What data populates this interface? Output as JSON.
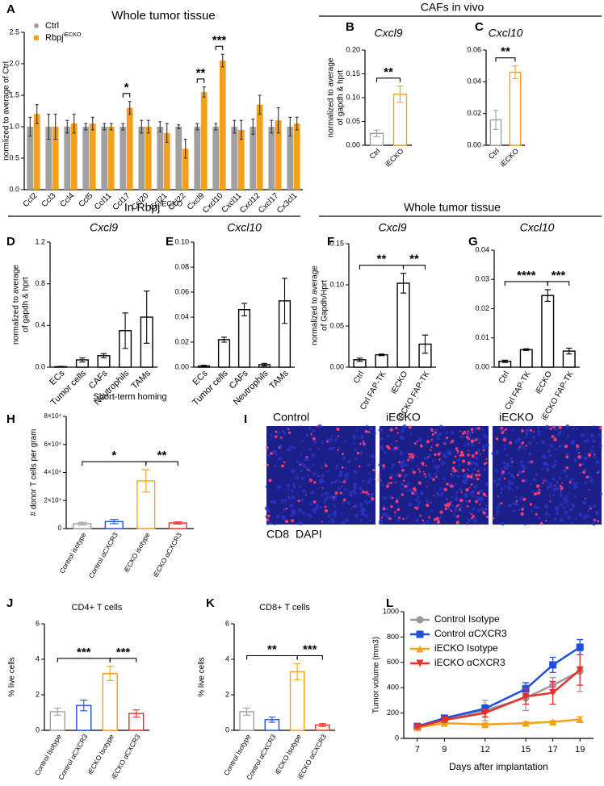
{
  "section_headers": [
    {
      "text": "CAFs in vivo"
    },
    {
      "text": "In Rbpj",
      "sup": "iECKO"
    },
    {
      "text": "Whole tumor tissue"
    }
  ],
  "image_panel": {
    "panel": "I",
    "tiles": [
      "Control",
      "iECKO",
      "iECKO"
    ],
    "channels": [
      {
        "name": "CD8",
        "color": "#e8252e"
      },
      {
        "name": "DAPI",
        "color": "#2f6fcf"
      }
    ]
  },
  "chart_data": [
    {
      "type": "bar",
      "panel": "A",
      "title": "Whole tumor tissue",
      "ylabel": "normlized to average of Ctrl",
      "bar_style": "filled",
      "categories": [
        "Ccl2",
        "Ccl3",
        "Ccl4",
        "Ccl5",
        "Ccl11",
        "Ccl17",
        "Ccl20",
        "Ccl21",
        "Ccl22",
        "Cxcl9",
        "Cxcl10",
        "Cxcl11",
        "Cxcl12",
        "Cxcl17",
        "Cx3cl1"
      ],
      "series": [
        {
          "name": "Ctrl",
          "color": "#a0a0a0",
          "marker": "circle",
          "values": [
            1.0,
            1.0,
            1.0,
            1.0,
            1.0,
            1.0,
            1.0,
            1.0,
            1.0,
            1.0,
            1.0,
            1.0,
            1.0,
            1.0,
            1.0
          ],
          "errors": [
            0.15,
            0.2,
            0.1,
            0.05,
            0.05,
            0.05,
            0.1,
            0.08,
            0.03,
            0.05,
            0.05,
            0.1,
            0.12,
            0.1,
            0.15
          ]
        },
        {
          "name": "Rbpj",
          "name_sup": "iECKO",
          "color": "#f5a01a",
          "marker": "square",
          "values": [
            1.2,
            1.0,
            1.05,
            1.05,
            1.0,
            1.3,
            1.0,
            0.9,
            0.65,
            1.55,
            2.05,
            0.95,
            1.35,
            1.1,
            1.05
          ],
          "errors": [
            0.15,
            0.2,
            0.15,
            0.1,
            0.05,
            0.1,
            0.1,
            0.15,
            0.15,
            0.08,
            0.1,
            0.15,
            0.15,
            0.2,
            0.1
          ]
        }
      ],
      "ylim": [
        0,
        2.5
      ],
      "yticks": [
        {
          "value": 0,
          "label": "0.0"
        },
        0.5,
        {
          "value": 1,
          "label": "1.0"
        },
        1.5,
        {
          "value": 2,
          "label": "2.0"
        },
        2.5
      ],
      "annotations": [
        {
          "category": "Ccl17",
          "text": "*"
        },
        {
          "category": "Cxcl9",
          "text": "**"
        },
        {
          "category": "Cxcl10",
          "text": "***"
        }
      ]
    },
    {
      "type": "bar",
      "panel": "B",
      "title": "Cxcl9",
      "title_style": "italic",
      "ylabel": [
        "normalized to average",
        "of gapdh & hprt"
      ],
      "bar_style": "outline",
      "categories": [
        "Ctrl",
        "iECKO"
      ],
      "colors": [
        "#a0a0a0",
        "#f5a01a"
      ],
      "values": [
        0.025,
        0.107
      ],
      "errors": [
        0.007,
        0.017
      ],
      "ylim": [
        0,
        0.2
      ],
      "yticks": [
        {
          "value": 0,
          "label": "0.00"
        },
        0.05,
        {
          "value": 0.1,
          "label": "0.10"
        },
        0.15,
        {
          "value": 0.2,
          "label": "0.20"
        }
      ],
      "annotations": [
        {
          "from": "Ctrl",
          "to": "iECKO",
          "text": "**"
        }
      ]
    },
    {
      "type": "bar",
      "panel": "C",
      "title": "Cxcl10",
      "title_style": "italic",
      "bar_style": "outline",
      "categories": [
        "Ctrl",
        "iECKO"
      ],
      "colors": [
        "#a0a0a0",
        "#f5a01a"
      ],
      "values": [
        0.016,
        0.046
      ],
      "errors": [
        0.006,
        0.004
      ],
      "ylim": [
        0,
        0.06
      ],
      "yticks": [
        {
          "value": 0,
          "label": "0.00"
        },
        0.02,
        0.04,
        0.06
      ],
      "annotations": [
        {
          "from": "Ctrl",
          "to": "iECKO",
          "text": "**"
        }
      ]
    },
    {
      "type": "bar",
      "panel": "D",
      "title": "Cxcl9",
      "title_style": "italic",
      "ylabel": [
        "normalized to average",
        "of gapdh & hprt"
      ],
      "bar_style": "outline",
      "categories": [
        "ECs",
        "Tumor cells",
        "CAFs",
        "Neutrophils",
        "TAMs"
      ],
      "values": [
        0.005,
        0.07,
        0.11,
        0.35,
        0.48
      ],
      "errors": [
        0.003,
        0.02,
        0.02,
        0.17,
        0.25
      ],
      "ylim": [
        0,
        1.2
      ],
      "yticks": [
        {
          "value": 0,
          "label": "0.0"
        },
        0.4,
        0.8,
        1.2
      ]
    },
    {
      "type": "bar",
      "panel": "E",
      "title": "Cxcl10",
      "title_style": "italic",
      "bar_style": "outline",
      "categories": [
        "ECs",
        "Tumor cells",
        "CAFs",
        "Neutrophils",
        "TAMs"
      ],
      "values": [
        0.001,
        0.022,
        0.046,
        0.002,
        0.053
      ],
      "errors": [
        0.0005,
        0.002,
        0.005,
        0.001,
        0.018
      ],
      "ylim": [
        0,
        0.1
      ],
      "yticks": [
        {
          "value": 0,
          "label": "0.00"
        },
        0.02,
        0.04,
        0.06,
        0.08,
        {
          "value": 0.1,
          "label": "0.10"
        }
      ]
    },
    {
      "type": "bar",
      "panel": "F",
      "title": "Cxcl9",
      "title_style": "italic",
      "ylabel": [
        "normalized to average",
        "of Gapdh/Hprt"
      ],
      "bar_style": "outline",
      "categories": [
        "Ctrl",
        "Ctrl FAP-TK",
        "iECKO",
        "iECKO FAP-TK"
      ],
      "values": [
        0.009,
        0.015,
        0.102,
        0.028
      ],
      "errors": [
        0.002,
        0.001,
        0.012,
        0.011
      ],
      "ylim": [
        0,
        0.15
      ],
      "yticks": [
        {
          "value": 0,
          "label": "0.00"
        },
        0.05,
        {
          "value": 0.1,
          "label": "0.10"
        },
        0.15
      ],
      "annotations": [
        {
          "from": "Ctrl",
          "to": "iECKO",
          "text": "**"
        },
        {
          "from": "iECKO",
          "to": "iECKO FAP-TK",
          "text": "**"
        }
      ]
    },
    {
      "type": "bar",
      "panel": "G",
      "title": "Cxcl10",
      "title_style": "italic",
      "bar_style": "outline",
      "categories": [
        "Ctrl",
        "Ctrl FAP-TK",
        "iECKO",
        "iECKO FAP-TK"
      ],
      "values": [
        0.002,
        0.006,
        0.0245,
        0.0055
      ],
      "errors": [
        0.0004,
        0.0003,
        0.002,
        0.001
      ],
      "ylim": [
        0,
        0.04
      ],
      "yticks": [
        {
          "value": 0,
          "label": "0.00"
        },
        0.01,
        0.02,
        0.03,
        0.04
      ],
      "annotations": [
        {
          "from": "Ctrl",
          "to": "iECKO",
          "text": "****"
        },
        {
          "from": "iECKO",
          "to": "iECKO FAP-TK",
          "text": "***"
        }
      ]
    },
    {
      "type": "bar",
      "panel": "H",
      "title": "Short-term homing",
      "ylabel": "# donor T cells per gram",
      "bar_style": "outline",
      "categories": [
        "Control isotype",
        "Control αCXCR3",
        "iECKO isotype",
        "iECKO αCXCR3"
      ],
      "colors": [
        "#a0a0a0",
        "#1f4fe0",
        "#f5a01a",
        "#e8302a"
      ],
      "values": [
        3500,
        5000,
        34000,
        4000
      ],
      "errors": [
        1000,
        1500,
        8000,
        800
      ],
      "ylim": [
        0,
        80000
      ],
      "yticks": [
        0,
        {
          "value": 20000,
          "label": "2×10⁴"
        },
        {
          "value": 40000,
          "label": "4×10⁴"
        },
        {
          "value": 60000,
          "label": "6×10⁴"
        },
        {
          "value": 80000,
          "label": "8×10⁴"
        }
      ],
      "annotations": [
        {
          "from": "Control isotype",
          "to": "iECKO isotype",
          "text": "*"
        },
        {
          "from": "iECKO isotype",
          "to": "iECKO αCXCR3",
          "text": "**"
        }
      ]
    },
    {
      "type": "bar",
      "panel": "J",
      "title": "CD4+ T cells",
      "ylabel": "% live cells",
      "bar_style": "outline",
      "categories": [
        "Control Isotype",
        "Control αCXCR3",
        "iECKO Isotype",
        "iECKO αCXCR3"
      ],
      "colors": [
        "#a0a0a0",
        "#1f4fe0",
        "#f5a01a",
        "#e8302a"
      ],
      "values": [
        1.05,
        1.4,
        3.2,
        0.95
      ],
      "errors": [
        0.2,
        0.3,
        0.4,
        0.2
      ],
      "ylim": [
        0,
        6
      ],
      "yticks": [
        0,
        2,
        4,
        6
      ],
      "annotations": [
        {
          "from": "Control Isotype",
          "to": "iECKO Isotype",
          "text": "***"
        },
        {
          "from": "iECKO Isotype",
          "to": "iECKO αCXCR3",
          "text": "***"
        }
      ]
    },
    {
      "type": "bar",
      "panel": "K",
      "title": "CD8+ T cells",
      "ylabel": "% live cells",
      "bar_style": "outline",
      "categories": [
        "Control Isotype",
        "Control αCXCR3",
        "iECKO Isotype",
        "iECKO αCXCR3"
      ],
      "colors": [
        "#a0a0a0",
        "#1f4fe0",
        "#f5a01a",
        "#e8302a"
      ],
      "values": [
        1.05,
        0.6,
        3.3,
        0.3
      ],
      "errors": [
        0.2,
        0.15,
        0.45,
        0.08
      ],
      "ylim": [
        0,
        6
      ],
      "yticks": [
        0,
        2,
        4,
        6
      ],
      "annotations": [
        {
          "from": "Control Isotype",
          "to": "iECKO Isotype",
          "text": "**"
        },
        {
          "from": "iECKO Isotype",
          "to": "iECKO αCXCR3",
          "text": "***"
        }
      ]
    },
    {
      "type": "line",
      "panel": "L",
      "xlabel": "Days after implantation",
      "ylabel": "Tumor volume (mm3)",
      "x": [
        7,
        9,
        12,
        15,
        17,
        19
      ],
      "xlim": [
        6,
        20
      ],
      "xticks": [
        7,
        9,
        12,
        15,
        17,
        19
      ],
      "ylim": [
        0,
        1000
      ],
      "yticks": [
        0,
        200,
        400,
        600,
        800,
        1000
      ],
      "series": [
        {
          "name": "Control Isotype",
          "color": "#999999",
          "marker": "circle",
          "values": [
            90,
            150,
            220,
            320,
            420,
            530
          ],
          "errors": [
            10,
            20,
            80,
            100,
            60,
            160
          ]
        },
        {
          "name": "Control αCXCR3",
          "color": "#1f4fe0",
          "marker": "square",
          "values": [
            95,
            160,
            235,
            390,
            580,
            720
          ],
          "errors": [
            15,
            20,
            30,
            50,
            60,
            60
          ]
        },
        {
          "name": "iECKO Isotype",
          "color": "#f5a01a",
          "marker": "triangle",
          "values": [
            85,
            120,
            110,
            120,
            130,
            150
          ],
          "errors": [
            10,
            10,
            10,
            10,
            10,
            20
          ]
        },
        {
          "name": "iECKO αCXCR3",
          "color": "#e8302a",
          "marker": "triangle-down",
          "values": [
            90,
            145,
            200,
            330,
            360,
            540
          ],
          "errors": [
            10,
            20,
            30,
            60,
            90,
            120
          ]
        }
      ]
    }
  ]
}
